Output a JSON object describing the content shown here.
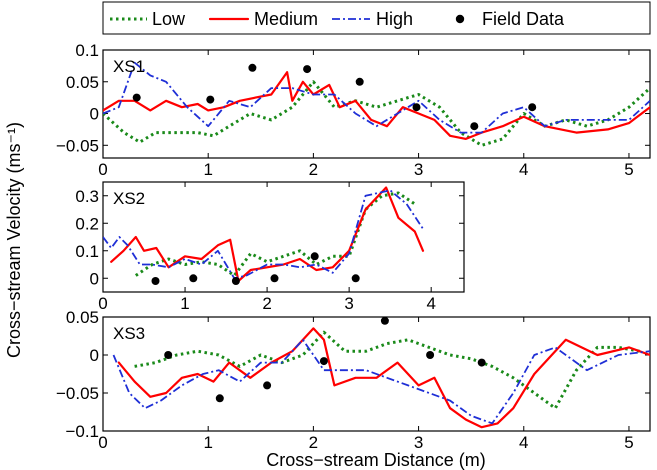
{
  "chart_data": {
    "type": "line",
    "ylabel": "Cross−stream Velocity (ms⁻¹)",
    "xlabel": "Cross−stream Distance (m)",
    "legend": {
      "placement": "top",
      "entries": [
        {
          "name": "Low",
          "color": "#1a8a1a",
          "style": "dotted"
        },
        {
          "name": "Medium",
          "color": "#ff0000",
          "style": "solid"
        },
        {
          "name": "High",
          "color": "#1f2fd6",
          "style": "dashdot"
        },
        {
          "name": "Field Data",
          "color": "#000000",
          "style": "marker"
        }
      ]
    },
    "panels": [
      {
        "label": "XS1",
        "xlim": [
          0,
          5.2
        ],
        "ylim": [
          -0.07,
          0.1
        ],
        "xticks": [
          0,
          1,
          2,
          3,
          4,
          5
        ],
        "yticks": [
          -0.05,
          0,
          0.05,
          0.1
        ],
        "ytick_labels": [
          "−0.05",
          "0",
          "0.05",
          "0.1"
        ],
        "series": [
          {
            "name": "Low",
            "x": [
              0,
              0.2,
              0.35,
              0.5,
              0.7,
              0.9,
              1.05,
              1.2,
              1.4,
              1.6,
              1.8,
              2.0,
              2.2,
              2.4,
              2.6,
              2.8,
              3.0,
              3.2,
              3.4,
              3.6,
              3.8,
              4.0,
              4.2,
              4.4,
              4.6,
              4.8,
              5.0,
              5.2
            ],
            "y": [
              0,
              -0.03,
              -0.045,
              -0.03,
              -0.03,
              -0.03,
              -0.035,
              -0.02,
              0,
              -0.01,
              0.01,
              0.05,
              0.01,
              0.02,
              0.01,
              0.02,
              0.03,
              0.01,
              -0.03,
              -0.05,
              -0.04,
              0,
              -0.02,
              -0.01,
              -0.02,
              -0.01,
              0.01,
              0.04
            ]
          },
          {
            "name": "Medium",
            "x": [
              0,
              0.15,
              0.3,
              0.45,
              0.6,
              0.75,
              0.9,
              1.0,
              1.15,
              1.3,
              1.45,
              1.6,
              1.75,
              1.8,
              1.9,
              2.0,
              2.15,
              2.25,
              2.4,
              2.55,
              2.7,
              2.85,
              3.0,
              3.15,
              3.3,
              3.45,
              3.6,
              3.8,
              4.0,
              4.2,
              4.5,
              4.8,
              5.0,
              5.2
            ],
            "y": [
              0.005,
              0.02,
              0.02,
              0.005,
              0.02,
              0.01,
              0.015,
              0.005,
              0.01,
              0.02,
              0.025,
              0.03,
              0.065,
              0.02,
              0.05,
              0.03,
              0.045,
              0.01,
              0.02,
              -0.01,
              -0.02,
              0.01,
              0,
              -0.01,
              -0.035,
              -0.04,
              -0.03,
              -0.02,
              -0.005,
              -0.02,
              -0.03,
              -0.025,
              -0.015,
              0.01
            ]
          },
          {
            "name": "High",
            "x": [
              0,
              0.15,
              0.3,
              0.45,
              0.6,
              0.8,
              1.0,
              1.2,
              1.4,
              1.6,
              1.8,
              2.0,
              2.2,
              2.4,
              2.6,
              2.8,
              3.0,
              3.2,
              3.4,
              3.6,
              3.8,
              4.0,
              4.2,
              4.4,
              4.7,
              5.0,
              5.2
            ],
            "y": [
              0,
              0.01,
              0.08,
              0.06,
              0.05,
              0.01,
              -0.02,
              0.02,
              0.01,
              0.04,
              0.04,
              0.03,
              0.03,
              0.0,
              -0.02,
              0.0,
              0.02,
              -0.01,
              -0.03,
              -0.03,
              0.0,
              0.01,
              -0.02,
              -0.01,
              -0.01,
              -0.01,
              0.02
            ]
          }
        ],
        "field_data": {
          "x": [
            0.32,
            1.02,
            1.42,
            1.94,
            2.44,
            2.98,
            3.53,
            4.08
          ],
          "y": [
            0.025,
            0.022,
            0.072,
            0.07,
            0.05,
            0.01,
            -0.02,
            0.01
          ]
        }
      },
      {
        "label": "XS2",
        "xlim": [
          0,
          4.4
        ],
        "ylim": [
          -0.05,
          0.35
        ],
        "xticks": [
          0,
          1,
          2,
          3,
          4
        ],
        "yticks": [
          0,
          0.1,
          0.2,
          0.3
        ],
        "ytick_labels": [
          "0",
          "0.1",
          "0.2",
          "0.3"
        ],
        "series": [
          {
            "name": "Low",
            "x": [
              0.4,
              0.6,
              0.8,
              1.0,
              1.2,
              1.4,
              1.6,
              1.8,
              2.0,
              2.2,
              2.4,
              2.6,
              2.8,
              3.0,
              3.2,
              3.4,
              3.6,
              3.8
            ],
            "y": [
              0.01,
              0.05,
              0.07,
              0.05,
              0.06,
              0.05,
              0.01,
              0.09,
              0.06,
              0.08,
              0.1,
              0.05,
              0.08,
              0.08,
              0.25,
              0.3,
              0.31,
              0.27
            ]
          },
          {
            "name": "Medium",
            "x": [
              0.1,
              0.25,
              0.4,
              0.5,
              0.65,
              0.8,
              1.0,
              1.2,
              1.4,
              1.55,
              1.65,
              1.8,
              2.0,
              2.2,
              2.4,
              2.6,
              2.8,
              3.0,
              3.2,
              3.45,
              3.6,
              3.8,
              3.9
            ],
            "y": [
              0.06,
              0.1,
              0.15,
              0.1,
              0.11,
              0.04,
              0.08,
              0.07,
              0.12,
              0.14,
              -0.01,
              0.03,
              0.04,
              0.05,
              0.07,
              0.03,
              0.04,
              0.1,
              0.25,
              0.33,
              0.22,
              0.17,
              0.1
            ]
          },
          {
            "name": "High",
            "x": [
              0,
              0.1,
              0.2,
              0.3,
              0.45,
              0.6,
              0.8,
              1.0,
              1.2,
              1.4,
              1.6,
              1.75,
              2.0,
              2.2,
              2.4,
              2.6,
              2.8,
              3.0,
              3.2,
              3.5,
              3.7,
              3.9
            ],
            "y": [
              0.15,
              0.11,
              0.15,
              0.12,
              0.05,
              0.05,
              0.04,
              0.07,
              0.05,
              0.1,
              0.0,
              0.01,
              0.05,
              0.05,
              0.04,
              0.05,
              0.02,
              0.09,
              0.3,
              0.32,
              0.27,
              0.18
            ]
          }
        ],
        "field_data": {
          "x": [
            0.64,
            1.1,
            1.62,
            2.09,
            2.58,
            3.08
          ],
          "y": [
            -0.01,
            0.0,
            -0.01,
            0.0,
            0.08,
            0.0
          ]
        }
      },
      {
        "label": "XS3",
        "xlim": [
          0,
          5.2
        ],
        "ylim": [
          -0.1,
          0.05
        ],
        "xticks": [
          0,
          1,
          2,
          3,
          4,
          5
        ],
        "yticks": [
          -0.1,
          -0.05,
          0,
          0.05
        ],
        "ytick_labels": [
          "−0.1",
          "−0.05",
          "0",
          "0.05"
        ],
        "series": [
          {
            "name": "Low",
            "x": [
              0.3,
              0.5,
              0.7,
              0.9,
              1.1,
              1.3,
              1.5,
              1.7,
              1.9,
              2.1,
              2.3,
              2.5,
              2.7,
              2.9,
              3.1,
              3.3,
              3.5,
              3.7,
              3.9,
              4.1,
              4.3,
              4.5,
              4.7,
              4.9,
              5.1
            ],
            "y": [
              -0.015,
              -0.01,
              0.0,
              0.005,
              0.0,
              -0.015,
              0.0,
              -0.01,
              0.0,
              0.03,
              0.005,
              0.005,
              0.015,
              0.02,
              0.01,
              0.0,
              -0.005,
              -0.015,
              -0.03,
              -0.05,
              -0.07,
              -0.02,
              0.01,
              0.01,
              0.005
            ]
          },
          {
            "name": "Medium",
            "x": [
              0.15,
              0.3,
              0.45,
              0.6,
              0.75,
              0.9,
              1.05,
              1.2,
              1.4,
              1.6,
              1.8,
              2.0,
              2.1,
              2.2,
              2.4,
              2.6,
              2.8,
              3.0,
              3.15,
              3.3,
              3.45,
              3.6,
              3.75,
              3.9,
              4.1,
              4.4,
              4.7,
              5.0,
              5.2
            ],
            "y": [
              -0.01,
              -0.035,
              -0.055,
              -0.05,
              -0.03,
              -0.025,
              -0.035,
              -0.01,
              -0.03,
              -0.01,
              0.005,
              0.035,
              0.02,
              -0.04,
              -0.03,
              -0.03,
              -0.01,
              -0.04,
              -0.03,
              -0.07,
              -0.085,
              -0.095,
              -0.09,
              -0.07,
              -0.025,
              0.02,
              0.0,
              0.01,
              0.0
            ]
          },
          {
            "name": "High",
            "x": [
              0.1,
              0.25,
              0.4,
              0.55,
              0.75,
              0.95,
              1.1,
              1.3,
              1.5,
              1.7,
              1.9,
              2.1,
              2.3,
              2.5,
              2.7,
              2.9,
              3.1,
              3.3,
              3.5,
              3.7,
              3.9,
              4.1,
              4.3,
              4.6,
              4.9,
              5.2
            ],
            "y": [
              0.0,
              -0.05,
              -0.07,
              -0.06,
              -0.04,
              -0.025,
              -0.02,
              -0.035,
              -0.01,
              -0.01,
              0.02,
              -0.02,
              -0.02,
              -0.02,
              -0.03,
              -0.04,
              -0.05,
              -0.06,
              -0.08,
              -0.09,
              -0.05,
              0.0,
              0.01,
              -0.02,
              0.0,
              0.005
            ]
          }
        ],
        "field_data": {
          "x": [
            0.62,
            1.11,
            1.56,
            2.1,
            2.68,
            3.11,
            3.6
          ],
          "y": [
            0.0,
            -0.057,
            -0.04,
            -0.008,
            0.045,
            0.0,
            -0.01
          ]
        }
      }
    ]
  }
}
